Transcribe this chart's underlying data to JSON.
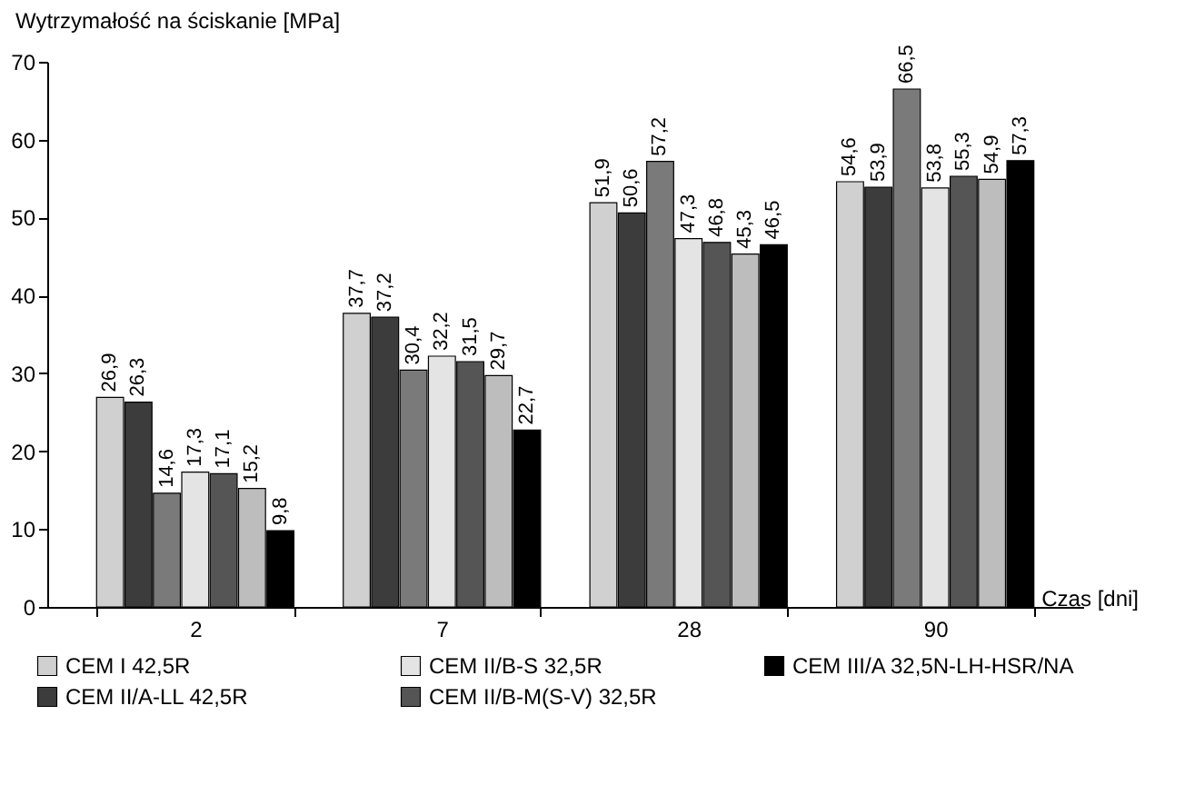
{
  "chart_data": {
    "type": "bar",
    "ylabel": "Wytrzymałość na ściskanie [MPa]",
    "xlabel": "Czas [dni]",
    "categories": [
      "2",
      "7",
      "28",
      "90"
    ],
    "ylim": [
      0,
      70
    ],
    "yticks": [
      0,
      10,
      20,
      30,
      40,
      50,
      60,
      70
    ],
    "grid": false,
    "legend": "bottom",
    "series": [
      {
        "name": "CEM I 42,5R",
        "color": "#d0d0d0",
        "values": [
          26.9,
          37.7,
          51.9,
          54.6
        ],
        "value_labels": [
          "26,9",
          "37,7",
          "51,9",
          "54,6"
        ]
      },
      {
        "name": "CEM II/A-LL 42,5R",
        "color": "#3c3c3c",
        "values": [
          26.3,
          37.2,
          50.6,
          53.9
        ],
        "value_labels": [
          "26,3",
          "37,2",
          "50,6",
          "53,9"
        ]
      },
      {
        "color": "#7a7a7a",
        "values": [
          14.6,
          30.4,
          57.2,
          66.5
        ],
        "value_labels": [
          "14,6",
          "30,4",
          "57,2",
          "66,5"
        ]
      },
      {
        "name": "CEM II/B-S 32,5R",
        "color": "#e4e4e4",
        "values": [
          17.3,
          32.2,
          47.3,
          53.8
        ],
        "value_labels": [
          "17,3",
          "32,2",
          "47,3",
          "53,8"
        ]
      },
      {
        "name": "CEM II/B-M(S-V) 32,5R",
        "color": "#555555",
        "values": [
          17.1,
          31.5,
          46.8,
          55.3
        ],
        "value_labels": [
          "17,1",
          "31,5",
          "46,8",
          "55,3"
        ]
      },
      {
        "color": "#bdbdbd",
        "values": [
          15.2,
          29.7,
          45.3,
          54.9
        ],
        "value_labels": [
          "15,2",
          "29,7",
          "45,3",
          "54,9"
        ]
      },
      {
        "name": "CEM III/A 32,5N-LH-HSR/NA",
        "color": "#000000",
        "values": [
          9.8,
          22.7,
          46.5,
          57.3
        ],
        "value_labels": [
          "9,8",
          "22,7",
          "46,5",
          "57,3"
        ]
      }
    ]
  }
}
